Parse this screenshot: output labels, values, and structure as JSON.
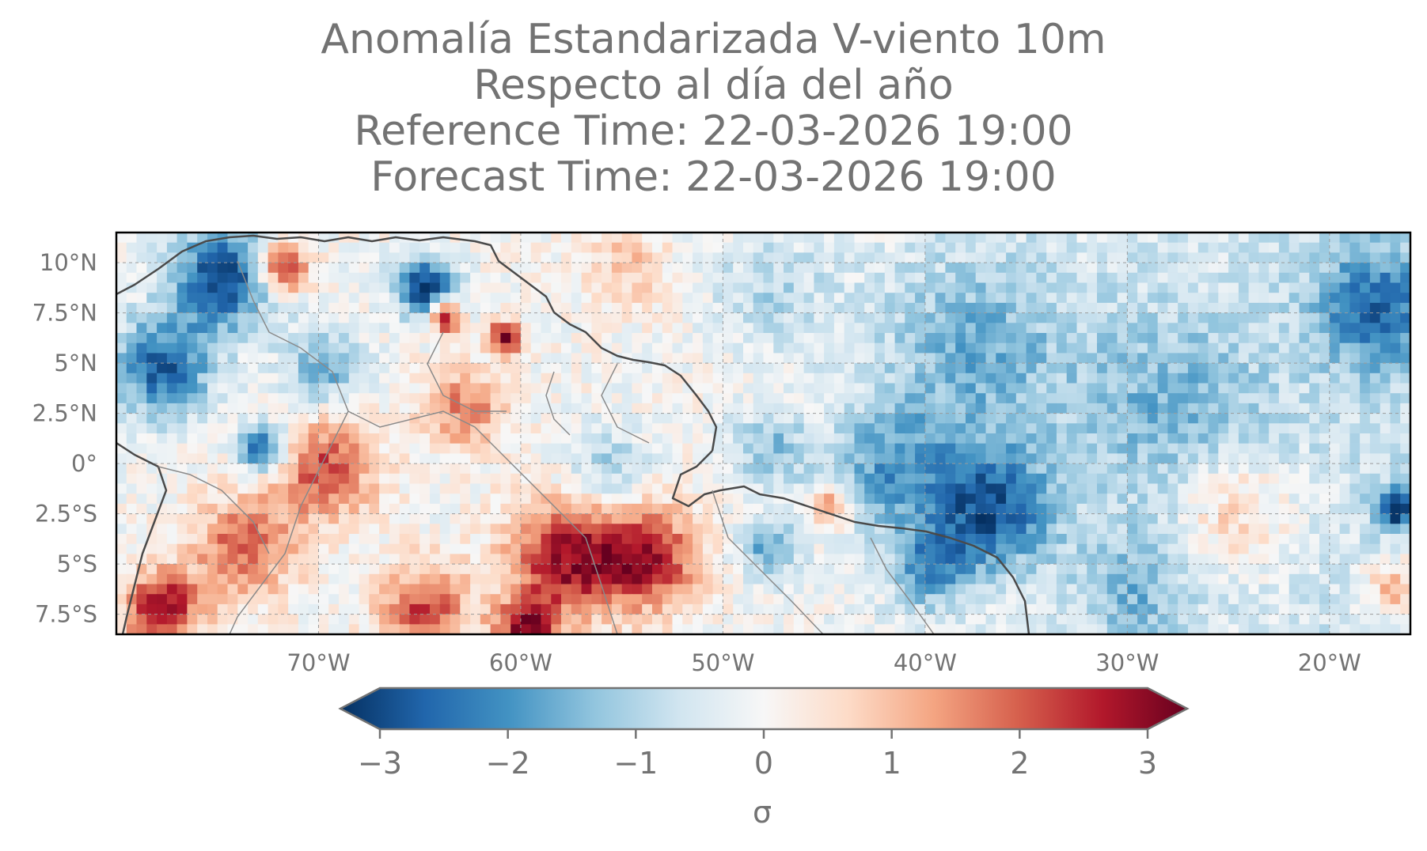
{
  "title": {
    "line1": "Anomalía Estandarizada V-viento 10m",
    "line2": "Respecto al día del año",
    "line3": "Reference Time: 22-03-2026 19:00",
    "line4": "Forecast Time: 22-03-2026 19:00"
  },
  "map": {
    "extent": {
      "lon": [
        -80,
        -16
      ],
      "lat": [
        -8.5,
        11.5
      ]
    },
    "lat_ticks": [
      {
        "value": 10,
        "label": "10°N"
      },
      {
        "value": 7.5,
        "label": "7.5°N"
      },
      {
        "value": 5,
        "label": "5°N"
      },
      {
        "value": 2.5,
        "label": "2.5°N"
      },
      {
        "value": 0,
        "label": "0°"
      },
      {
        "value": -2.5,
        "label": "2.5°S"
      },
      {
        "value": -5,
        "label": "5°S"
      },
      {
        "value": -7.5,
        "label": "7.5°S"
      }
    ],
    "lon_ticks": [
      {
        "value": -70,
        "label": "70°W"
      },
      {
        "value": -60,
        "label": "60°W"
      },
      {
        "value": -50,
        "label": "50°W"
      },
      {
        "value": -40,
        "label": "40°W"
      },
      {
        "value": -30,
        "label": "30°W"
      },
      {
        "value": -20,
        "label": "20°W"
      }
    ],
    "gridlines": true,
    "anomaly_blobs": [
      {
        "lon": -75,
        "lat": 9.5,
        "v": -2.8,
        "r": 2.5
      },
      {
        "lon": -78,
        "lat": 5,
        "v": -2.4,
        "r": 2.5
      },
      {
        "lon": -72,
        "lat": 10,
        "v": 2.8,
        "r": 1.2
      },
      {
        "lon": -65,
        "lat": 9,
        "v": -2.8,
        "r": 1.5
      },
      {
        "lon": -64,
        "lat": 7.5,
        "v": 2.8,
        "r": 0.8
      },
      {
        "lon": -61,
        "lat": 6.5,
        "v": 3.0,
        "r": 0.8
      },
      {
        "lon": -70,
        "lat": 5,
        "v": -1.5,
        "r": 2.0
      },
      {
        "lon": -73,
        "lat": 1,
        "v": -2.8,
        "r": 1.2
      },
      {
        "lon": -70,
        "lat": 0,
        "v": 2.0,
        "r": 2.5
      },
      {
        "lon": -63,
        "lat": 3,
        "v": 1.5,
        "r": 2.0
      },
      {
        "lon": -58,
        "lat": -4.5,
        "v": 2.6,
        "r": 2.8
      },
      {
        "lon": -54,
        "lat": -4.5,
        "v": 2.4,
        "r": 2.5
      },
      {
        "lon": -74,
        "lat": -4,
        "v": 1.8,
        "r": 2.5
      },
      {
        "lon": -78,
        "lat": -7,
        "v": 2.8,
        "r": 1.8
      },
      {
        "lon": -65,
        "lat": -7,
        "v": 2.0,
        "r": 2.2
      },
      {
        "lon": -60,
        "lat": -8,
        "v": 2.6,
        "r": 1.5
      },
      {
        "lon": -56,
        "lat": 0,
        "v": -1.0,
        "r": 2.0
      },
      {
        "lon": -48,
        "lat": 1,
        "v": -1.2,
        "r": 2.0
      },
      {
        "lon": -45,
        "lat": -2,
        "v": 1.8,
        "r": 1.0
      },
      {
        "lon": -48,
        "lat": -4,
        "v": -1.5,
        "r": 1.5
      },
      {
        "lon": -40,
        "lat": -5,
        "v": -1.6,
        "r": 2.0
      },
      {
        "lon": -37,
        "lat": -2,
        "v": -2.3,
        "r": 3.0
      },
      {
        "lon": -42,
        "lat": 0,
        "v": -1.5,
        "r": 3.0
      },
      {
        "lon": -38,
        "lat": 6,
        "v": -1.2,
        "r": 5.0
      },
      {
        "lon": -28,
        "lat": 3,
        "v": -1.0,
        "r": 5.0
      },
      {
        "lon": -18,
        "lat": 8,
        "v": -1.8,
        "r": 3.0
      },
      {
        "lon": -25,
        "lat": -2,
        "v": 1.2,
        "r": 3.0
      },
      {
        "lon": -17,
        "lat": -2,
        "v": -2.5,
        "r": 1.0
      },
      {
        "lon": -17,
        "lat": -6,
        "v": 1.6,
        "r": 1.5
      },
      {
        "lon": -30,
        "lat": -6,
        "v": -1.0,
        "r": 3.0
      },
      {
        "lon": -55,
        "lat": 10,
        "v": 0.8,
        "r": 2.0
      },
      {
        "lon": -48,
        "lat": 9,
        "v": -0.8,
        "r": 3.0
      }
    ]
  },
  "colorbar": {
    "ticks": [
      "−3",
      "−2",
      "−1",
      "0",
      "1",
      "2",
      "3"
    ],
    "label": "σ",
    "range": [
      -3,
      3
    ],
    "colormap": "RdBu_r",
    "stops": [
      "#053061",
      "#2166ac",
      "#4393c3",
      "#92c5de",
      "#d1e5f0",
      "#f7f7f7",
      "#fddbc7",
      "#f4a582",
      "#d6604d",
      "#b2182b",
      "#67001f"
    ]
  }
}
